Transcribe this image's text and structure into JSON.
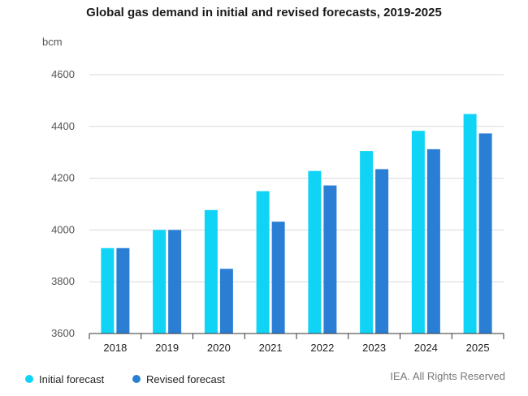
{
  "chart_data": {
    "type": "bar",
    "title": "Global gas demand in initial and revised forecasts, 2019-2025",
    "ylabel": "bcm",
    "xlabel": "",
    "categories": [
      "2018",
      "2019",
      "2020",
      "2021",
      "2022",
      "2023",
      "2024",
      "2025"
    ],
    "ylim": [
      3600,
      4600
    ],
    "yticks": [
      3600,
      3800,
      4000,
      4200,
      4400,
      4600
    ],
    "grid": true,
    "legend_position": "bottom-left",
    "series": [
      {
        "name": "Initial forecast",
        "color": "#10d4f5",
        "values": [
          3930,
          4000,
          4077,
          4150,
          4228,
          4305,
          4383,
          4448
        ]
      },
      {
        "name": "Revised forecast",
        "color": "#2a7fd4",
        "values": [
          3930,
          4000,
          3850,
          4032,
          4172,
          4235,
          4312,
          4373
        ]
      }
    ]
  },
  "credit": "IEA. All Rights Reserved"
}
